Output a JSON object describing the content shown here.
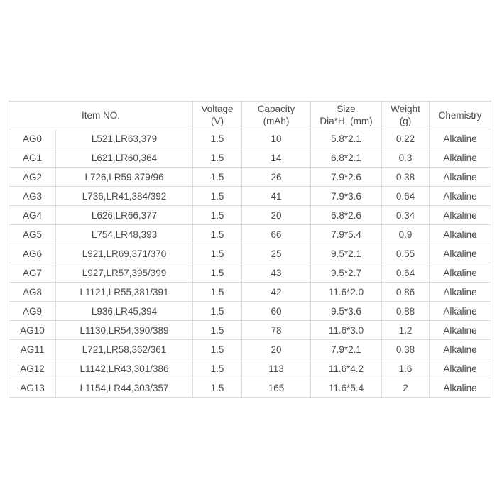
{
  "headers": {
    "item_no": "Item NO.",
    "voltage": [
      "Voltage",
      "(V)"
    ],
    "capacity": [
      "Capacity",
      "(mAh)"
    ],
    "size": [
      "Size",
      "Dia*H. (mm)"
    ],
    "weight": [
      "Weight",
      "(g)"
    ],
    "chemistry": "Chemistry"
  },
  "rows": [
    [
      "AG0",
      "L521,LR63,379",
      "1.5",
      "10",
      "5.8*2.1",
      "0.22",
      "Alkaline"
    ],
    [
      "AG1",
      "L621,LR60,364",
      "1.5",
      "14",
      "6.8*2.1",
      "0.3",
      "Alkaline"
    ],
    [
      "AG2",
      "L726,LR59,379/96",
      "1.5",
      "26",
      "7.9*2.6",
      "0.38",
      "Alkaline"
    ],
    [
      "AG3",
      "L736,LR41,384/392",
      "1.5",
      "41",
      "7.9*3.6",
      "0.64",
      "Alkaline"
    ],
    [
      "AG4",
      "L626,LR66,377",
      "1.5",
      "20",
      "6.8*2.6",
      "0.34",
      "Alkaline"
    ],
    [
      "AG5",
      "L754,LR48,393",
      "1.5",
      "66",
      "7.9*5.4",
      "0.9",
      "Alkaline"
    ],
    [
      "AG6",
      "L921,LR69,371/370",
      "1.5",
      "25",
      "9.5*2.1",
      "0.55",
      "Alkaline"
    ],
    [
      "AG7",
      "L927,LR57,395/399",
      "1.5",
      "43",
      "9.5*2.7",
      "0.64",
      "Alkaline"
    ],
    [
      "AG8",
      "L1121,LR55,381/391",
      "1.5",
      "42",
      "11.6*2.0",
      "0.86",
      "Alkaline"
    ],
    [
      "AG9",
      "L936,LR45,394",
      "1.5",
      "60",
      "9.5*3.6",
      "0.88",
      "Alkaline"
    ],
    [
      "AG10",
      "L1130,LR54,390/389",
      "1.5",
      "78",
      "11.6*3.0",
      "1.2",
      "Alkaline"
    ],
    [
      "AG11",
      "L721,LR58,362/361",
      "1.5",
      "20",
      "7.9*2.1",
      "0.38",
      "Alkaline"
    ],
    [
      "AG12",
      "L1142,LR43,301/386",
      "1.5",
      "113",
      "11.6*4.2",
      "1.6",
      "Alkaline"
    ],
    [
      "AG13",
      "L1154,LR44,303/357",
      "1.5",
      "165",
      "11.6*5.4",
      "2",
      "Alkaline"
    ]
  ]
}
